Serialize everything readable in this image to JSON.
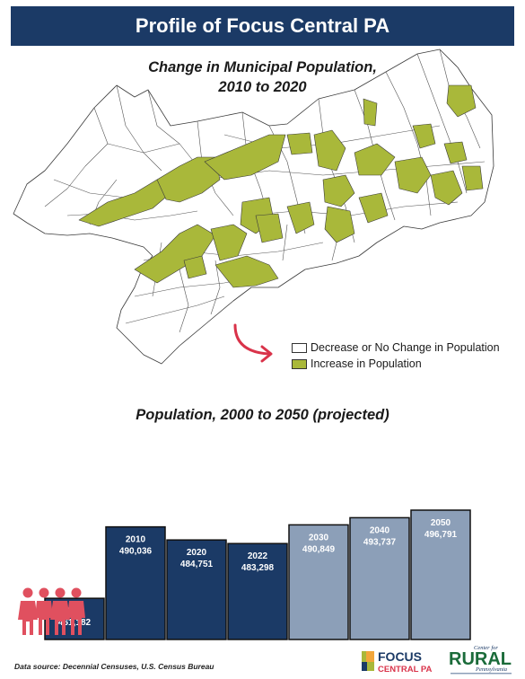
{
  "header": {
    "title": "Profile of Focus Central PA"
  },
  "map": {
    "title_line1": "Change in Municipal Population,",
    "title_line2": "2010 to 2020",
    "legend": [
      {
        "label": "Decrease or No Change in Population",
        "color": "#ffffff"
      },
      {
        "label": "Increase in Population",
        "color": "#a9b83a"
      }
    ],
    "arrow_icon": "curved-arrow-icon"
  },
  "chart_data": {
    "type": "bar",
    "title": "Population, 2000 to 2050 (projected)",
    "categories": [
      "2000",
      "2010",
      "2020",
      "2022",
      "2030",
      "2040",
      "2050"
    ],
    "values": [
      461182,
      490036,
      484751,
      483298,
      490849,
      493737,
      496791
    ],
    "value_labels": [
      "461,182",
      "490,036",
      "484,751",
      "483,298",
      "490,849",
      "493,737",
      "496,791"
    ],
    "bar_colors": [
      "#1b3a66",
      "#1b3a66",
      "#1b3a66",
      "#1b3a66",
      "#8c9fb8",
      "#8c9fb8",
      "#8c9fb8"
    ],
    "projected_from": "2030",
    "xlabel": "",
    "ylabel": "",
    "grid": false,
    "people_icon": "people-icon"
  },
  "footer": {
    "source": "Data source: Decennial Censuses, U.S. Census Bureau",
    "logo_focus_line1": "FOCUS",
    "logo_focus_line2": "CENTRAL PA",
    "logo_rural_top": "Center for",
    "logo_rural_main": "RURAL",
    "logo_rural_bottom": "Pennsylvania"
  },
  "colors": {
    "navy": "#1b3a66",
    "projected": "#8c9fb8",
    "increase": "#a9b83a",
    "arrow": "#d9334a",
    "people": "#e0505f"
  }
}
